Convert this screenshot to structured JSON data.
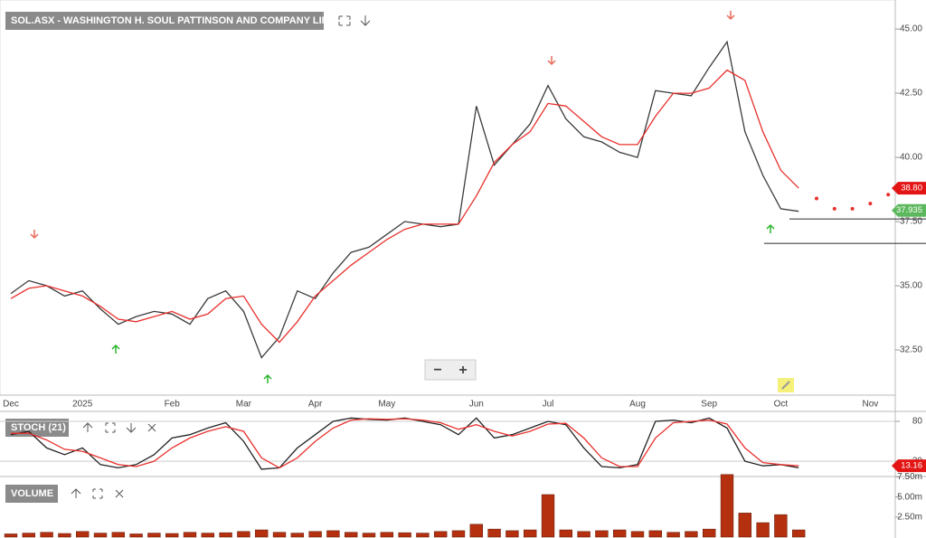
{
  "chart_data": [
    {
      "type": "line",
      "title": "SOL.ASX - WASHINGTON H. SOUL PATTINSON AND COMPANY LIMITED",
      "categories": [
        "Dec",
        null,
        null,
        null,
        "2025",
        null,
        null,
        null,
        null,
        "Feb",
        null,
        null,
        null,
        "Mar",
        null,
        null,
        null,
        "Apr",
        null,
        null,
        null,
        "May",
        null,
        null,
        null,
        null,
        "Jun",
        null,
        null,
        null,
        "Jul",
        null,
        null,
        null,
        null,
        "Aug",
        null,
        null,
        null,
        "Sep",
        null,
        null,
        null,
        "Oct",
        null,
        null,
        null,
        null,
        "Nov",
        null
      ],
      "series": [
        {
          "color": "#3a3a3a",
          "values": [
            34.7,
            35.2,
            35.0,
            34.6,
            34.8,
            34.1,
            33.5,
            33.8,
            34.0,
            33.9,
            33.5,
            34.5,
            34.8,
            34.0,
            32.2,
            33.0,
            34.8,
            34.5,
            35.5,
            36.3,
            36.5,
            37.0,
            37.5,
            37.4,
            37.3,
            37.4,
            42.0,
            39.7,
            40.5,
            41.3,
            42.8,
            41.5,
            40.8,
            40.6,
            40.2,
            40.0,
            42.6,
            42.5,
            42.4,
            43.5,
            44.5,
            41.0,
            39.3,
            38.0,
            37.9,
            null,
            null,
            null,
            null,
            null
          ]
        },
        {
          "color": "#e8302c",
          "values": [
            34.5,
            34.9,
            35.0,
            34.8,
            34.6,
            34.2,
            33.7,
            33.6,
            33.8,
            34.0,
            33.7,
            33.9,
            34.5,
            34.6,
            33.5,
            32.8,
            33.6,
            34.6,
            35.2,
            35.8,
            36.3,
            36.8,
            37.2,
            37.4,
            37.4,
            37.4,
            38.5,
            39.8,
            40.5,
            41.0,
            42.1,
            42.0,
            41.4,
            40.8,
            40.5,
            40.5,
            41.6,
            42.5,
            42.5,
            42.7,
            43.4,
            43.0,
            41.0,
            39.5,
            38.8,
            null,
            null,
            null,
            null,
            null
          ]
        },
        {
          "color": "#e8302c",
          "dotted": true,
          "values": [
            null,
            null,
            null,
            null,
            null,
            null,
            null,
            null,
            null,
            null,
            null,
            null,
            null,
            null,
            null,
            null,
            null,
            null,
            null,
            null,
            null,
            null,
            null,
            null,
            null,
            null,
            null,
            null,
            null,
            null,
            null,
            null,
            null,
            null,
            null,
            null,
            null,
            null,
            null,
            null,
            null,
            null,
            null,
            null,
            null,
            38.4,
            38.0,
            38.0,
            38.2,
            38.55
          ]
        }
      ],
      "ylim": [
        30.74,
        46.13
      ],
      "yticks": [
        {
          "value": 32.5,
          "label": "32.50"
        },
        {
          "value": 35,
          "label": "35.00"
        },
        {
          "value": 37.5,
          "label": "37.50"
        },
        {
          "value": 40,
          "label": "40.00"
        },
        {
          "value": 42.5,
          "label": "42.50"
        },
        {
          "value": 45,
          "label": "45.00"
        }
      ],
      "levels": [
        37.6,
        36.65
      ],
      "tags": [
        {
          "value": 38.8,
          "label": "38.80",
          "color": "#e31414"
        },
        {
          "value": 37.935,
          "label": "37.935",
          "color": "#5cb85c"
        }
      ],
      "buttons": [
        "−",
        "+"
      ]
    },
    {
      "type": "line",
      "title": "STOCH (21)",
      "series": [
        {
          "color": "#222",
          "values": [
            60,
            65,
            40,
            30,
            40,
            15,
            10,
            15,
            30,
            55,
            60,
            70,
            78,
            50,
            8,
            10,
            40,
            60,
            80,
            85,
            83,
            82,
            85,
            80,
            75,
            60,
            85,
            55,
            60,
            70,
            80,
            75,
            40,
            12,
            10,
            15,
            80,
            82,
            78,
            85,
            70,
            20,
            13,
            15,
            10,
            null,
            null,
            null,
            null,
            null
          ]
        },
        {
          "color": "#e8302c",
          "values": [
            62,
            62,
            52,
            38,
            35,
            25,
            15,
            12,
            20,
            40,
            55,
            65,
            72,
            65,
            25,
            10,
            25,
            50,
            70,
            82,
            84,
            83,
            84,
            82,
            78,
            68,
            75,
            65,
            58,
            65,
            76,
            77,
            55,
            25,
            12,
            12,
            55,
            78,
            80,
            82,
            76,
            40,
            18,
            15,
            13,
            null,
            null,
            null,
            null,
            null
          ]
        }
      ],
      "ylim": [
        -3,
        95
      ],
      "yticks": [
        20,
        80
      ],
      "tags": [
        {
          "value": 13.16,
          "label": "13.16",
          "color": "#e31414"
        }
      ]
    },
    {
      "type": "bar",
      "title": "VOLUME",
      "color": "#b5300f",
      "values": [
        400000,
        500000,
        600000,
        450000,
        700000,
        500000,
        600000,
        400000,
        500000,
        450000,
        600000,
        500000,
        550000,
        700000,
        900000,
        600000,
        500000,
        700000,
        800000,
        600000,
        500000,
        600000,
        550000,
        500000,
        700000,
        800000,
        1600000,
        1000000,
        800000,
        900000,
        5300000,
        900000,
        700000,
        800000,
        900000,
        700000,
        800000,
        600000,
        700000,
        1000000,
        7800000,
        3000000,
        1800000,
        2800000,
        900000,
        null,
        null,
        null,
        null,
        null
      ],
      "ylim": [
        0,
        7550000
      ],
      "yticks": [
        {
          "value": 2500000,
          "label": "2.50m"
        },
        {
          "value": 5000000,
          "label": "5.00m"
        },
        {
          "value": 7500000,
          "label": "7.50m"
        }
      ]
    }
  ]
}
